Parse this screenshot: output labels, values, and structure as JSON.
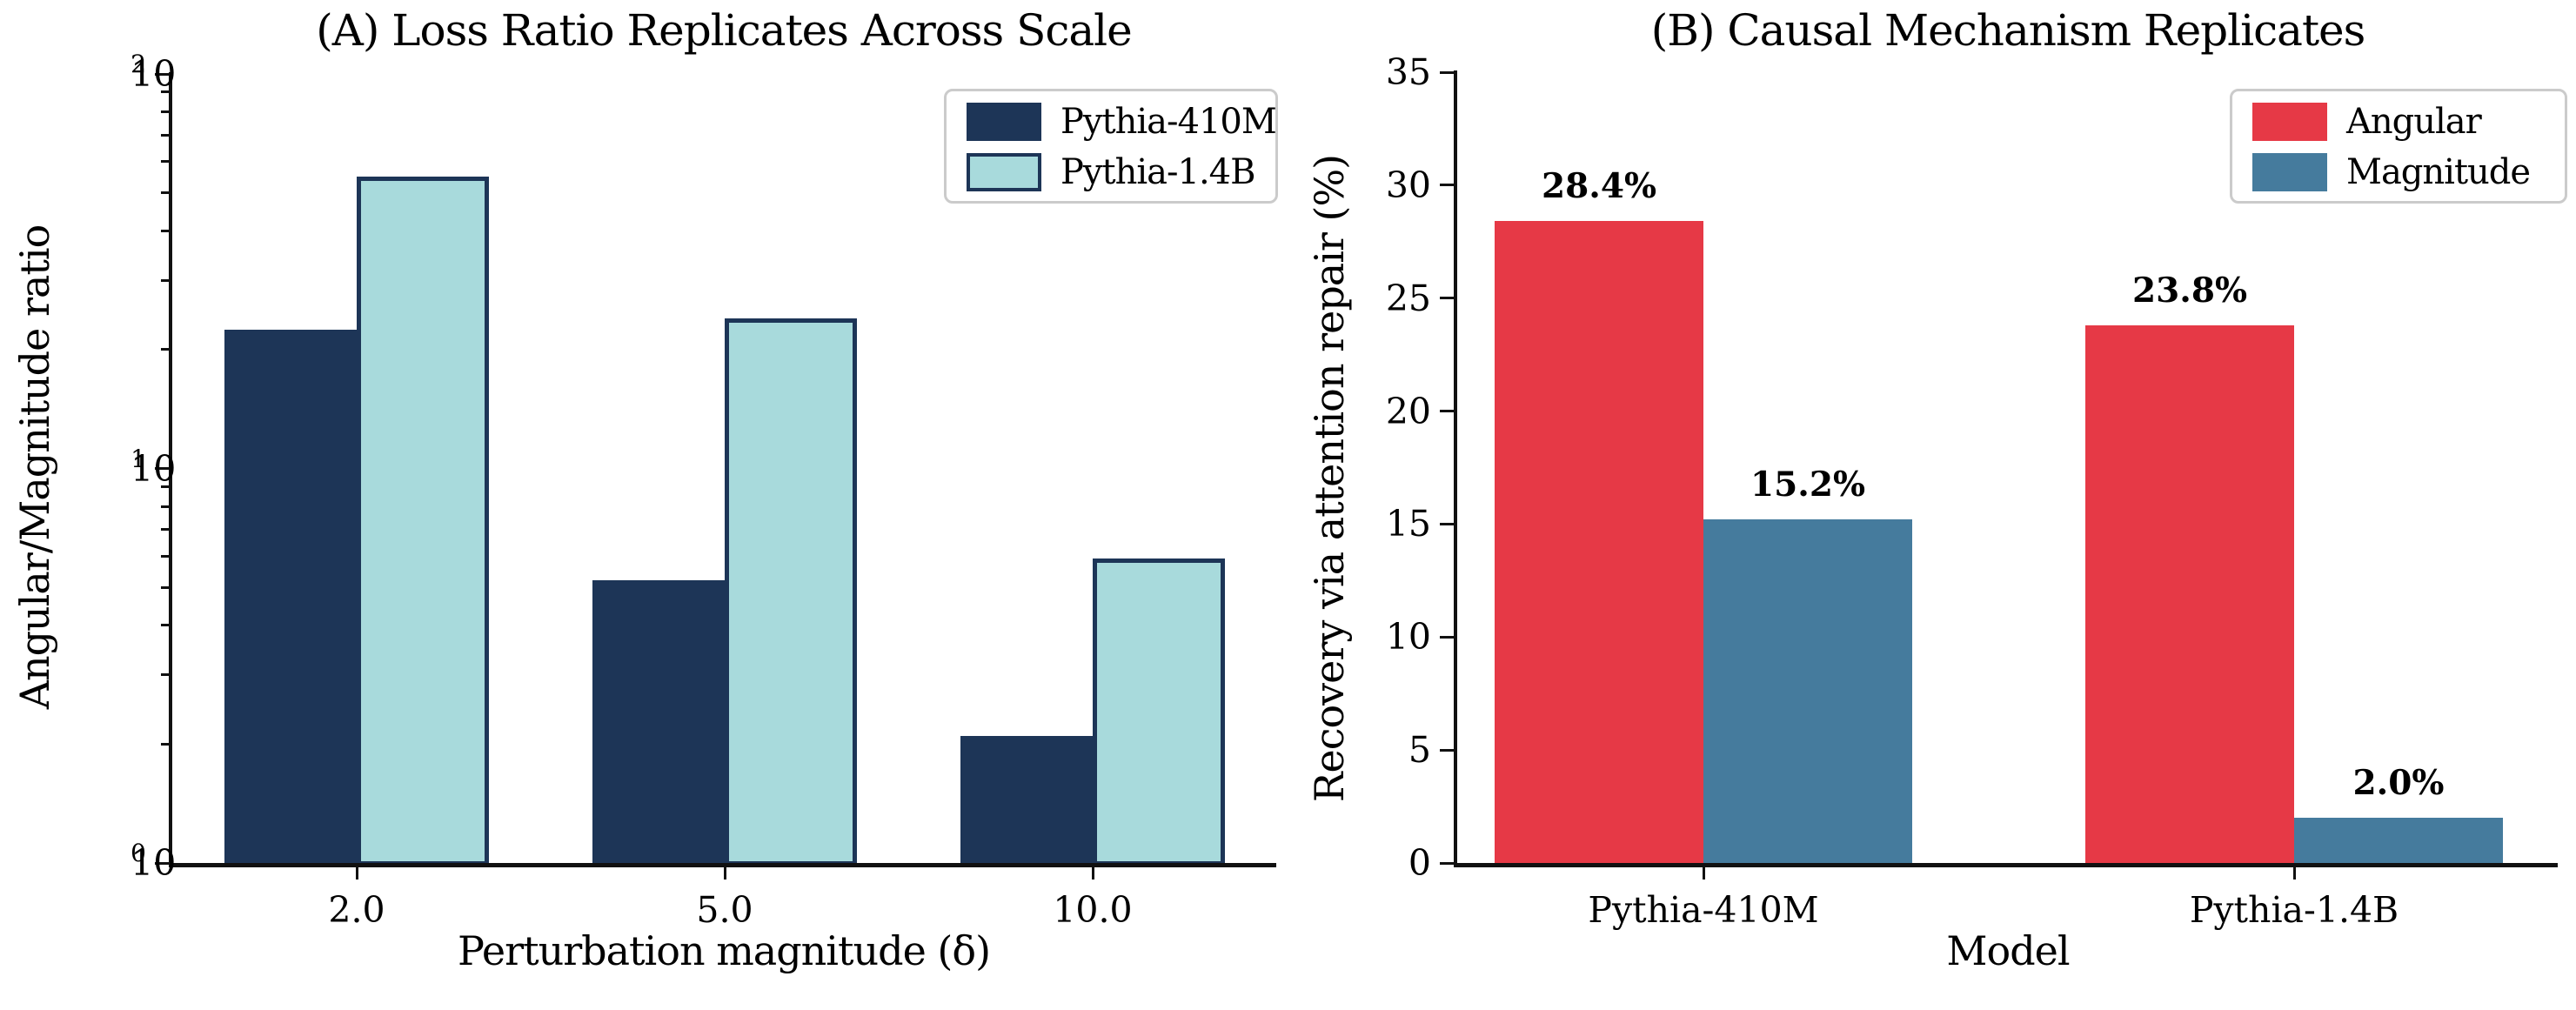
{
  "figure": {
    "background": "#ffffff",
    "axis_color": "#111111",
    "text_color": "#000000"
  },
  "panelA": {
    "title": "(A) Loss Ratio Replicates Across Scale",
    "xlabel": "Perturbation magnitude (δ)",
    "ylabel": "Angular/Magnitude ratio",
    "chart_data": {
      "type": "bar",
      "yscale": "log",
      "ylim": [
        1,
        100
      ],
      "grid": false,
      "legend_position": "upper right",
      "categories": [
        "2.0",
        "5.0",
        "10.0"
      ],
      "series": [
        {
          "name": "Pythia-410M",
          "color": "#1d3557",
          "edge": "#1d3557",
          "values": [
            22.5,
            5.2,
            2.1
          ]
        },
        {
          "name": "Pythia-1.4B",
          "color": "#a8dadc",
          "edge": "#1d3557",
          "values": [
            55.0,
            24.0,
            5.9
          ]
        }
      ],
      "yticks": [
        {
          "value": 1,
          "base": "10",
          "exp": "0"
        },
        {
          "value": 10,
          "base": "10",
          "exp": "1"
        },
        {
          "value": 100,
          "base": "10",
          "exp": "2"
        }
      ]
    }
  },
  "panelB": {
    "title": "(B) Causal Mechanism Replicates",
    "xlabel": "Model",
    "ylabel": "Recovery via attention repair (%)",
    "chart_data": {
      "type": "bar",
      "yscale": "linear",
      "ylim": [
        0,
        35
      ],
      "grid": false,
      "legend_position": "upper right",
      "categories": [
        "Pythia-410M",
        "Pythia-1.4B"
      ],
      "series": [
        {
          "name": "Angular",
          "color": "#e63946",
          "edge": null,
          "values": [
            28.4,
            23.8
          ],
          "labels": [
            "28.4%",
            "23.8%"
          ]
        },
        {
          "name": "Magnitude",
          "color": "#457b9d",
          "edge": null,
          "values": [
            15.2,
            2.0
          ],
          "labels": [
            "15.2%",
            "2.0%"
          ]
        }
      ],
      "yticks": [
        {
          "value": 0,
          "label": "0"
        },
        {
          "value": 5,
          "label": "5"
        },
        {
          "value": 10,
          "label": "10"
        },
        {
          "value": 15,
          "label": "15"
        },
        {
          "value": 20,
          "label": "20"
        },
        {
          "value": 25,
          "label": "25"
        },
        {
          "value": 30,
          "label": "30"
        },
        {
          "value": 35,
          "label": "35"
        }
      ]
    }
  }
}
